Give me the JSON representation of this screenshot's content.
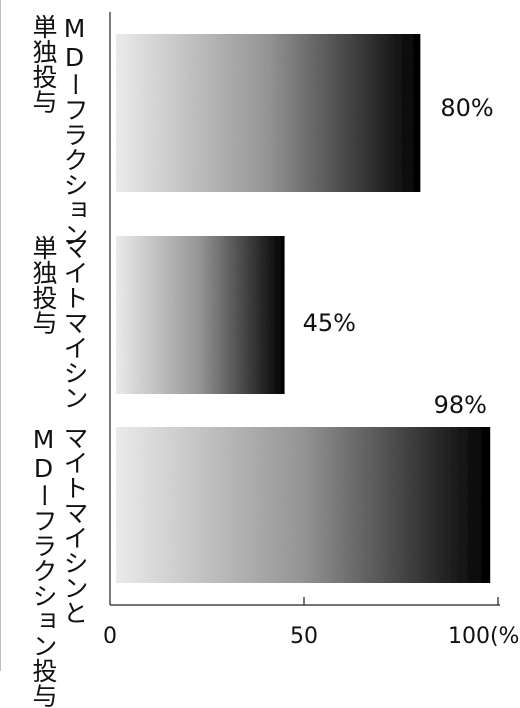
{
  "chart_data": {
    "type": "bar",
    "orientation": "horizontal",
    "categories": [
      "MDーフラクション\n単独投与",
      "マイトマイシン\n単独投与",
      "マイトマイシンと\nMDーフラクション投与"
    ],
    "values": [
      80,
      45,
      98
    ],
    "value_labels": [
      "80%",
      "45%",
      "98%"
    ],
    "x_ticks": [
      "0",
      "50",
      "100(%)"
    ],
    "x_tick_values": [
      0,
      50,
      100
    ],
    "xlim": [
      0,
      100
    ],
    "title": "",
    "xlabel": "",
    "ylabel": "",
    "grid": false,
    "bar_fill": "gradient white to black",
    "colors": {
      "bar_light": "#f4f4f4",
      "bar_mid": "#9a9a9a",
      "bar_dark": "#000000",
      "axis": "#222222"
    }
  }
}
